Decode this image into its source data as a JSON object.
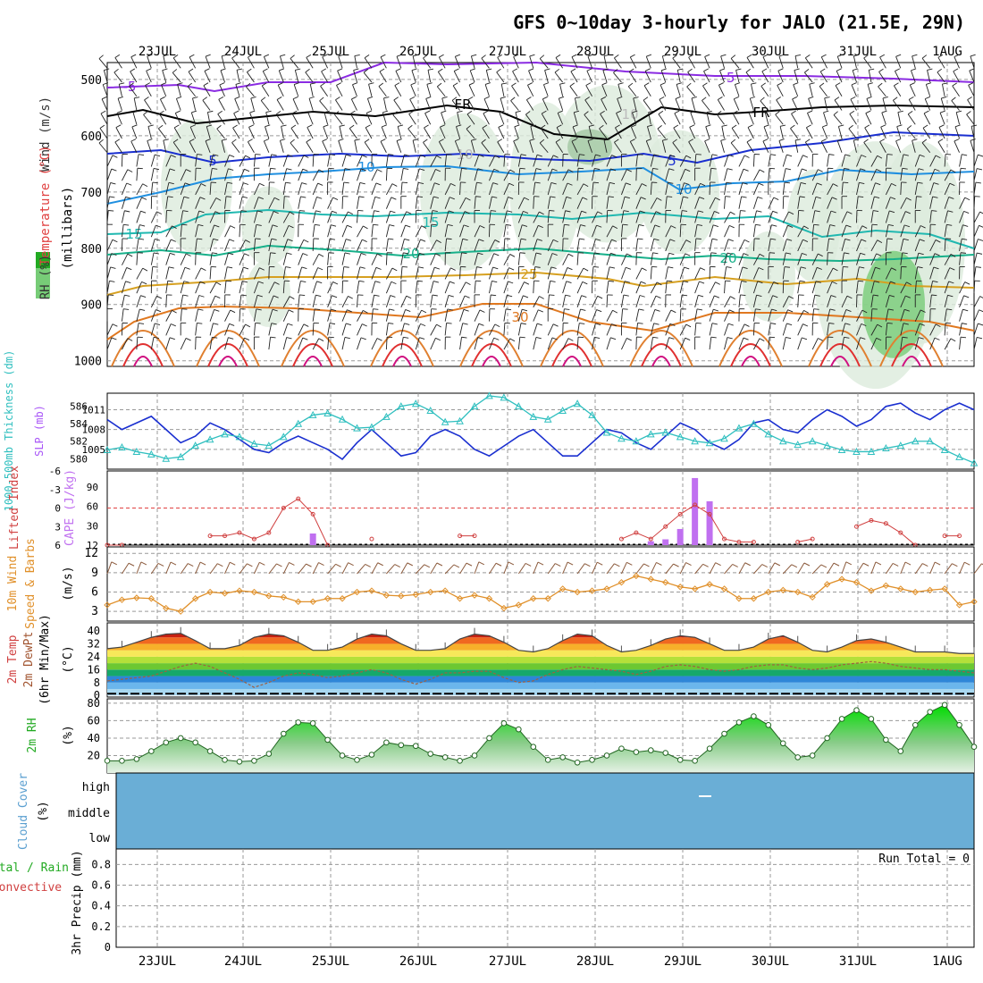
{
  "title": "GFS 0~10day 3-hourly for JALO (21.5E, 29N)",
  "dates": [
    "23JUL",
    "24JUL",
    "25JUL",
    "26JUL",
    "27JUL",
    "28JUL",
    "29JUL",
    "30JUL",
    "31JUL",
    "1AUG"
  ],
  "panels": {
    "upper": {
      "ylabel": "(millibars)",
      "legend_wind": "Wind (m/s)",
      "legend_temp": "Temperature (°C)",
      "legend_rh": "RH (%)",
      "pressure_ticks": [
        "500",
        "600",
        "700",
        "800",
        "900",
        "1000"
      ],
      "contour_labels": [
        "-5",
        "-5",
        "FR",
        "FR",
        "5",
        "5",
        "10",
        "10",
        "15",
        "15",
        "20",
        "20",
        "25",
        "30",
        "10",
        "10"
      ]
    },
    "slp": {
      "label_left": "1000-500mb Thickness (dm)",
      "label_right": "SLP (mb)",
      "ticks_left": [
        "586",
        "584",
        "582",
        "580"
      ],
      "ticks_right": [
        "1011",
        "1008",
        "1005"
      ]
    },
    "cape": {
      "label_left": "Lifted Index",
      "label_right": "CAPE (J/kg)",
      "ticks_left": [
        "-6",
        "-3",
        "0",
        "3",
        "6"
      ],
      "ticks_right": [
        "90",
        "60",
        "30",
        "12"
      ]
    },
    "wind10m": {
      "label1": "10m Wind",
      "label2": "Speed & Barbs",
      "label3": "(m/s)",
      "ticks": [
        "12",
        "9",
        "6",
        "3"
      ]
    },
    "temp2m": {
      "label1": "2m Temp",
      "label2": "2m DewPt",
      "label3": "(6hr Min/Max)",
      "label4": "(°C)",
      "ticks": [
        "40",
        "32",
        "24",
        "16",
        "8",
        "0"
      ]
    },
    "rh2m": {
      "label1": "2m RH",
      "label2": "(%)",
      "ticks": [
        "80",
        "60",
        "40",
        "20"
      ]
    },
    "cloud": {
      "label1": "Cloud Cover",
      "label2": "(%)",
      "levels": [
        "high",
        "middle",
        "low"
      ]
    },
    "precip": {
      "label1": "3hr Precip (mm)",
      "label2": "Total / Rain",
      "label3": "Convective",
      "run_total": "Run Total = 0",
      "ticks": [
        "0.8",
        "0.6",
        "0.4",
        "0.2",
        "0"
      ]
    }
  },
  "colors": {
    "thickness": "#2fbfbf",
    "slp": "#1a2fd0",
    "cape_bar": "#c070f0",
    "lifted": "#d04040",
    "wind_speed": "#e0902a",
    "wind_barb": "#8b5a3c",
    "rh_green": "#22cc22",
    "cloud": "#6aaed6"
  },
  "chart_data": {
    "type": "line",
    "x_unit": "3-hourly steps from 22JUL 12Z",
    "slp_mb": [
      1009.5,
      1008,
      1009,
      1010,
      1008,
      1006,
      1007,
      1009,
      1008,
      1006.5,
      1005,
      1004.5,
      1006,
      1007,
      1006,
      1005,
      1003.5,
      1006,
      1008,
      1006,
      1004,
      1004.5,
      1007,
      1008,
      1007,
      1005,
      1004,
      1005.5,
      1007,
      1008,
      1006,
      1004,
      1004,
      1006,
      1008,
      1007.5,
      1006,
      1005,
      1007,
      1009,
      1008,
      1006,
      1005,
      1006.5,
      1009,
      1009.5,
      1008,
      1007.5,
      1009.5,
      1011,
      1010,
      1008.5,
      1009.5,
      1011.5,
      1012,
      1010.5,
      1009.5,
      1011,
      1012,
      1011
    ],
    "thickness_dm": [
      581,
      581.3,
      580.8,
      580.5,
      580,
      580.2,
      581.5,
      582.2,
      582.8,
      582.5,
      581.7,
      581.5,
      582.5,
      584,
      585,
      585.2,
      584.5,
      583.5,
      583.6,
      584.8,
      586,
      586.3,
      585.5,
      584.2,
      584.3,
      586,
      587.2,
      587,
      586,
      584.8,
      584.5,
      585.5,
      586.3,
      585,
      583,
      582.3,
      582,
      582.8,
      583,
      582.5,
      582,
      581.8,
      582.3,
      583.5,
      584,
      582.8,
      582,
      581.6,
      582,
      581.5,
      581,
      580.8,
      580.8,
      581.2,
      581.5,
      582,
      582,
      581,
      580.2,
      579.5
    ],
    "cape_jkg": [
      0,
      0,
      0,
      0,
      0,
      0,
      0,
      0,
      0,
      0,
      0,
      0,
      0,
      0,
      18,
      0,
      0,
      0,
      0,
      0,
      0,
      0,
      0,
      0,
      0,
      0,
      0,
      0,
      0,
      0,
      0,
      0,
      0,
      0,
      0,
      0,
      0,
      6,
      9,
      25,
      104,
      68,
      0,
      0,
      0,
      0,
      0,
      0,
      0,
      0,
      0,
      0,
      0,
      0,
      0,
      0,
      0,
      0,
      0,
      0
    ],
    "lifted_index": [
      6,
      6,
      null,
      null,
      null,
      null,
      null,
      4.5,
      4.5,
      4,
      5,
      4,
      0,
      -1.5,
      1,
      6,
      null,
      null,
      5,
      null,
      null,
      null,
      null,
      null,
      4.5,
      4.5,
      null,
      null,
      null,
      null,
      null,
      null,
      null,
      null,
      null,
      5,
      4,
      5,
      3,
      1,
      -0.5,
      1,
      5,
      5.5,
      5.5,
      null,
      null,
      5.5,
      5,
      null,
      null,
      3,
      2,
      2.5,
      4,
      6,
      null,
      4.5,
      4.5,
      null
    ],
    "wind_speed_ms": [
      4,
      4.8,
      5.1,
      5,
      3.5,
      3,
      5,
      6,
      5.8,
      6.2,
      6,
      5.4,
      5.2,
      4.5,
      4.5,
      5,
      5,
      6,
      6.2,
      5.5,
      5.4,
      5.6,
      6,
      6.2,
      5,
      5.5,
      5,
      3.5,
      4,
      5,
      5,
      6.5,
      6,
      6.2,
      6.5,
      7.5,
      8.5,
      8,
      7.5,
      6.8,
      6.5,
      7.2,
      6.5,
      5,
      5,
      6,
      6.3,
      6,
      5.2,
      7.2,
      8,
      7.5,
      6.2,
      7,
      6.5,
      6,
      6.3,
      6.5,
      4,
      4.5
    ],
    "temp2m_c": [
      29,
      30,
      33,
      36,
      38,
      38.5,
      34,
      29,
      29,
      31,
      36,
      38,
      37,
      33,
      28,
      28,
      30,
      35,
      38,
      37,
      32,
      28,
      28,
      29,
      35,
      38,
      37,
      33,
      28,
      27,
      29,
      34,
      38,
      37,
      31,
      27,
      28,
      31,
      35,
      37,
      36,
      32,
      28,
      28,
      30,
      35,
      37,
      33,
      28,
      27,
      30,
      34,
      35,
      33,
      30,
      27,
      27,
      27,
      26,
      26
    ],
    "dewpt2m_c": [
      9,
      10,
      11,
      12,
      15,
      18,
      20,
      18,
      14,
      10,
      5,
      8,
      12,
      14,
      13,
      11,
      12,
      14,
      16,
      14,
      10,
      7,
      10,
      14,
      14,
      15,
      15,
      11,
      8,
      9,
      13,
      16,
      18,
      17,
      16,
      15,
      13,
      15,
      18,
      19,
      18,
      16,
      15,
      16,
      18,
      19,
      19,
      17,
      16,
      17,
      19,
      20,
      21,
      20,
      18,
      17,
      16,
      16,
      15,
      14
    ],
    "rh2m_pct": [
      14,
      14,
      16,
      25,
      35,
      40,
      35,
      25,
      15,
      13,
      14,
      22,
      45,
      58,
      57,
      38,
      20,
      15,
      21,
      35,
      32,
      31,
      22,
      18,
      14,
      20,
      40,
      57,
      50,
      30,
      15,
      18,
      12,
      15,
      20,
      28,
      24,
      26,
      23,
      15,
      14,
      28,
      45,
      58,
      65,
      55,
      34,
      18,
      20,
      40,
      62,
      72,
      62,
      38,
      25,
      55,
      70,
      78,
      55,
      30
    ]
  }
}
